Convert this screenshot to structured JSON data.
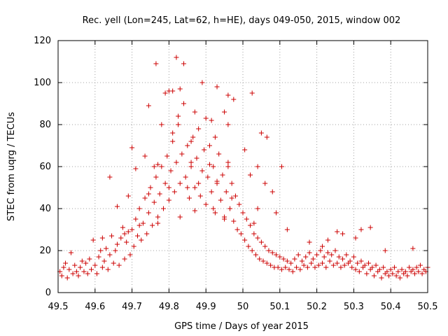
{
  "colors": {
    "series": "#cc0000",
    "grid": "#a0a0a0",
    "axis": "#000000"
  },
  "chart_data": {
    "type": "scatter",
    "title": "Rec. yell (Lon=245, Lat=62, h=HE), days 049-050, 2015, window 002",
    "xlabel": "GPS time / Days of year 2015",
    "ylabel": "STEC from uqrg / TECUs",
    "xlim": [
      49.5,
      50.5
    ],
    "ylim": [
      0,
      120
    ],
    "xticks": [
      49.5,
      49.6,
      49.7,
      49.8,
      49.9,
      50,
      50.1,
      50.2,
      50.3,
      50.4,
      50.5
    ],
    "xtick_labels": [
      "49.5",
      "49.6",
      "49.7",
      "49.8",
      "49.9",
      "50",
      "50.1",
      "50.2",
      "50.3",
      "50.4",
      "50.5"
    ],
    "yticks": [
      0,
      20,
      40,
      60,
      80,
      100,
      120
    ],
    "ytick_labels": [
      "0",
      "20",
      "40",
      "60",
      "80",
      "100",
      "120"
    ],
    "grid": true,
    "marker": "+",
    "points": [
      [
        49.505,
        10
      ],
      [
        49.51,
        8
      ],
      [
        49.515,
        12
      ],
      [
        49.52,
        14
      ],
      [
        49.525,
        7
      ],
      [
        49.53,
        11
      ],
      [
        49.535,
        19
      ],
      [
        49.54,
        9
      ],
      [
        49.545,
        13
      ],
      [
        49.55,
        10
      ],
      [
        49.555,
        8
      ],
      [
        49.56,
        12
      ],
      [
        49.565,
        15
      ],
      [
        49.57,
        10
      ],
      [
        49.575,
        14
      ],
      [
        49.58,
        9
      ],
      [
        49.585,
        16
      ],
      [
        49.59,
        11
      ],
      [
        49.595,
        25
      ],
      [
        49.6,
        13
      ],
      [
        49.605,
        9
      ],
      [
        49.61,
        17
      ],
      [
        49.615,
        20
      ],
      [
        49.62,
        12
      ],
      [
        49.625,
        15
      ],
      [
        49.63,
        21
      ],
      [
        49.635,
        11
      ],
      [
        49.64,
        18
      ],
      [
        49.645,
        27
      ],
      [
        49.65,
        14
      ],
      [
        49.655,
        20
      ],
      [
        49.66,
        23
      ],
      [
        49.665,
        13
      ],
      [
        49.67,
        26
      ],
      [
        49.675,
        31
      ],
      [
        49.68,
        16
      ],
      [
        49.685,
        24
      ],
      [
        49.69,
        29
      ],
      [
        49.695,
        18
      ],
      [
        49.7,
        30
      ],
      [
        49.705,
        22
      ],
      [
        49.71,
        35
      ],
      [
        49.715,
        27
      ],
      [
        49.72,
        40
      ],
      [
        49.725,
        25
      ],
      [
        49.73,
        33
      ],
      [
        49.735,
        45
      ],
      [
        49.74,
        28
      ],
      [
        49.745,
        38
      ],
      [
        49.75,
        50
      ],
      [
        49.755,
        32
      ],
      [
        49.76,
        43
      ],
      [
        49.765,
        55
      ],
      [
        49.77,
        36
      ],
      [
        49.775,
        47
      ],
      [
        49.78,
        60
      ],
      [
        49.785,
        40
      ],
      [
        49.79,
        52
      ],
      [
        49.795,
        65
      ],
      [
        49.8,
        44
      ],
      [
        49.805,
        58
      ],
      [
        49.81,
        72
      ],
      [
        49.815,
        48
      ],
      [
        49.82,
        62
      ],
      [
        49.825,
        80
      ],
      [
        49.83,
        52
      ],
      [
        49.835,
        66
      ],
      [
        49.84,
        90
      ],
      [
        49.845,
        55
      ],
      [
        49.85,
        70
      ],
      [
        49.855,
        45
      ],
      [
        49.86,
        60
      ],
      [
        49.865,
        74
      ],
      [
        49.87,
        50
      ],
      [
        49.875,
        64
      ],
      [
        49.88,
        78
      ],
      [
        49.885,
        46
      ],
      [
        49.89,
        58
      ],
      [
        49.895,
        68
      ],
      [
        49.9,
        42
      ],
      [
        49.905,
        55
      ],
      [
        49.91,
        70
      ],
      [
        49.915,
        48
      ],
      [
        49.92,
        60
      ],
      [
        49.925,
        38
      ],
      [
        49.93,
        52
      ],
      [
        49.935,
        66
      ],
      [
        49.94,
        44
      ],
      [
        49.945,
        56
      ],
      [
        49.95,
        36
      ],
      [
        49.955,
        48
      ],
      [
        49.96,
        62
      ],
      [
        49.965,
        40
      ],
      [
        49.97,
        52
      ],
      [
        49.975,
        34
      ],
      [
        49.98,
        46
      ],
      [
        49.985,
        30
      ],
      [
        49.99,
        42
      ],
      [
        49.995,
        28
      ],
      [
        50.0,
        38
      ],
      [
        50.005,
        25
      ],
      [
        50.01,
        35
      ],
      [
        50.015,
        22
      ],
      [
        50.02,
        32
      ],
      [
        50.025,
        20
      ],
      [
        50.03,
        28
      ],
      [
        50.035,
        18
      ],
      [
        50.04,
        26
      ],
      [
        50.045,
        16
      ],
      [
        50.05,
        24
      ],
      [
        50.055,
        15
      ],
      [
        50.06,
        22
      ],
      [
        50.065,
        14
      ],
      [
        50.07,
        20
      ],
      [
        50.075,
        13
      ],
      [
        50.08,
        19
      ],
      [
        50.085,
        12
      ],
      [
        50.09,
        18
      ],
      [
        50.095,
        12
      ],
      [
        50.1,
        17
      ],
      [
        50.105,
        11
      ],
      [
        50.11,
        16
      ],
      [
        50.115,
        12
      ],
      [
        50.12,
        15
      ],
      [
        50.125,
        11
      ],
      [
        50.13,
        14
      ],
      [
        50.135,
        10
      ],
      [
        50.14,
        16
      ],
      [
        50.145,
        12
      ],
      [
        50.15,
        18
      ],
      [
        50.155,
        11
      ],
      [
        50.16,
        15
      ],
      [
        50.165,
        13
      ],
      [
        50.17,
        17
      ],
      [
        50.175,
        12
      ],
      [
        50.18,
        19
      ],
      [
        50.185,
        14
      ],
      [
        50.19,
        16
      ],
      [
        50.195,
        12
      ],
      [
        50.2,
        18
      ],
      [
        50.205,
        13
      ],
      [
        50.21,
        20
      ],
      [
        50.215,
        14
      ],
      [
        50.22,
        17
      ],
      [
        50.225,
        12
      ],
      [
        50.23,
        19
      ],
      [
        50.235,
        15
      ],
      [
        50.24,
        18
      ],
      [
        50.245,
        13
      ],
      [
        50.25,
        20
      ],
      [
        50.255,
        14
      ],
      [
        50.26,
        17
      ],
      [
        50.265,
        12
      ],
      [
        50.27,
        16
      ],
      [
        50.275,
        13
      ],
      [
        50.28,
        18
      ],
      [
        50.285,
        14
      ],
      [
        50.29,
        15
      ],
      [
        50.295,
        12
      ],
      [
        50.3,
        17
      ],
      [
        50.305,
        11
      ],
      [
        50.31,
        14
      ],
      [
        50.315,
        10
      ],
      [
        50.32,
        15
      ],
      [
        50.325,
        12
      ],
      [
        50.33,
        13
      ],
      [
        50.335,
        9
      ],
      [
        50.34,
        14
      ],
      [
        50.345,
        11
      ],
      [
        50.35,
        12
      ],
      [
        50.355,
        8
      ],
      [
        50.36,
        13
      ],
      [
        50.365,
        10
      ],
      [
        50.37,
        11
      ],
      [
        50.375,
        7
      ],
      [
        50.38,
        12
      ],
      [
        50.385,
        9
      ],
      [
        50.39,
        10
      ],
      [
        50.395,
        8
      ],
      [
        50.4,
        11
      ],
      [
        50.405,
        9
      ],
      [
        50.41,
        12
      ],
      [
        50.415,
        8
      ],
      [
        50.42,
        10
      ],
      [
        50.425,
        7
      ],
      [
        50.43,
        11
      ],
      [
        50.435,
        9
      ],
      [
        50.44,
        10
      ],
      [
        50.445,
        8
      ],
      [
        50.45,
        12
      ],
      [
        50.455,
        10
      ],
      [
        50.46,
        11
      ],
      [
        50.465,
        9
      ],
      [
        50.47,
        12
      ],
      [
        50.475,
        10
      ],
      [
        50.48,
        13
      ],
      [
        50.485,
        9
      ],
      [
        50.49,
        11
      ],
      [
        50.495,
        10
      ],
      [
        50.5,
        12
      ],
      [
        49.765,
        109
      ],
      [
        49.82,
        112
      ],
      [
        49.84,
        109
      ],
      [
        49.89,
        100
      ],
      [
        49.93,
        98
      ],
      [
        49.96,
        94
      ],
      [
        49.975,
        92
      ],
      [
        50.025,
        95
      ],
      [
        49.8,
        96
      ],
      [
        49.81,
        96
      ],
      [
        49.745,
        89
      ],
      [
        49.79,
        95
      ],
      [
        49.83,
        97
      ],
      [
        49.87,
        86
      ],
      [
        49.9,
        83
      ],
      [
        49.95,
        86
      ],
      [
        49.78,
        80
      ],
      [
        49.825,
        84
      ],
      [
        49.915,
        82
      ],
      [
        50.05,
        76
      ],
      [
        49.7,
        69
      ],
      [
        49.735,
        65
      ],
      [
        49.81,
        76
      ],
      [
        49.86,
        72
      ],
      [
        49.925,
        74
      ],
      [
        49.96,
        80
      ],
      [
        50.005,
        68
      ],
      [
        50.065,
        74
      ],
      [
        50.04,
        60
      ],
      [
        50.105,
        60
      ],
      [
        49.64,
        55
      ],
      [
        49.71,
        59
      ],
      [
        49.76,
        60
      ],
      [
        49.77,
        61
      ],
      [
        49.86,
        62
      ],
      [
        49.91,
        61
      ],
      [
        49.96,
        60
      ],
      [
        50.02,
        56
      ],
      [
        50.08,
        48
      ],
      [
        50.06,
        52
      ],
      [
        49.66,
        41
      ],
      [
        49.69,
        46
      ],
      [
        49.745,
        47
      ],
      [
        49.8,
        50
      ],
      [
        49.85,
        50
      ],
      [
        49.88,
        52
      ],
      [
        49.93,
        53
      ],
      [
        49.97,
        45
      ],
      [
        50.04,
        40
      ],
      [
        50.09,
        38
      ],
      [
        49.62,
        26
      ],
      [
        49.68,
        28
      ],
      [
        49.72,
        32
      ],
      [
        49.77,
        33
      ],
      [
        49.83,
        36
      ],
      [
        49.87,
        39
      ],
      [
        49.92,
        40
      ],
      [
        49.95,
        35
      ],
      [
        50.03,
        33
      ],
      [
        50.12,
        30
      ],
      [
        50.255,
        29
      ],
      [
        50.27,
        28
      ],
      [
        50.32,
        30
      ],
      [
        50.345,
        31
      ],
      [
        50.23,
        25
      ],
      [
        50.18,
        24
      ],
      [
        50.305,
        26
      ],
      [
        50.385,
        20
      ],
      [
        50.46,
        21
      ],
      [
        50.215,
        22
      ]
    ]
  }
}
